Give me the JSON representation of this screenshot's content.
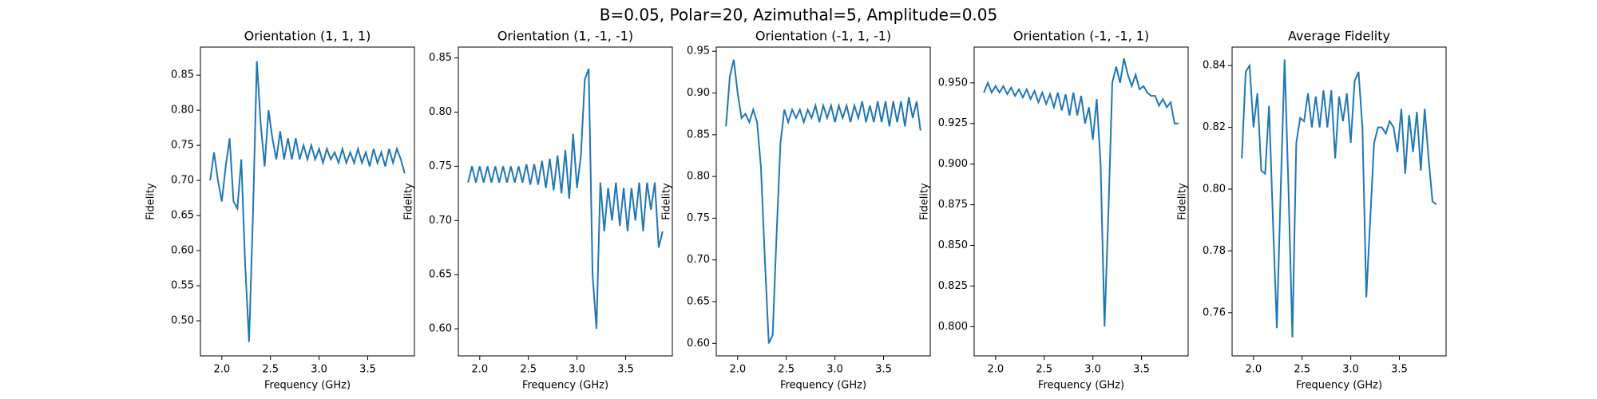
{
  "title": "B=0.05, Polar=20, Azimuthal=5, Amplitude=0.05",
  "chart_data": [
    {
      "type": "line",
      "title": "Orientation (1, 1, 1)",
      "xlabel": "Frequency (GHz)",
      "ylabel": "Fidelity",
      "color": "#1f77b4",
      "x": [
        1.88,
        1.92,
        1.96,
        2.0,
        2.04,
        2.08,
        2.12,
        2.16,
        2.2,
        2.24,
        2.28,
        2.32,
        2.36,
        2.4,
        2.44,
        2.48,
        2.52,
        2.56,
        2.6,
        2.64,
        2.68,
        2.72,
        2.76,
        2.8,
        2.84,
        2.88,
        2.92,
        2.96,
        3.0,
        3.04,
        3.08,
        3.12,
        3.16,
        3.2,
        3.24,
        3.28,
        3.32,
        3.36,
        3.4,
        3.44,
        3.48,
        3.52,
        3.56,
        3.6,
        3.64,
        3.68,
        3.72,
        3.76,
        3.8,
        3.84,
        3.88
      ],
      "values": [
        0.7,
        0.74,
        0.7,
        0.67,
        0.72,
        0.76,
        0.67,
        0.66,
        0.73,
        0.58,
        0.47,
        0.65,
        0.87,
        0.78,
        0.72,
        0.8,
        0.76,
        0.73,
        0.77,
        0.73,
        0.76,
        0.73,
        0.76,
        0.73,
        0.75,
        0.73,
        0.75,
        0.73,
        0.745,
        0.725,
        0.745,
        0.73,
        0.74,
        0.725,
        0.745,
        0.725,
        0.74,
        0.725,
        0.745,
        0.725,
        0.74,
        0.72,
        0.745,
        0.725,
        0.74,
        0.72,
        0.745,
        0.725,
        0.745,
        0.73,
        0.71
      ],
      "xlim": [
        1.78,
        3.98
      ],
      "xticks": [
        {
          "value": 2,
          "label": "2.0"
        },
        2.5,
        {
          "value": 3,
          "label": "3.0"
        },
        3.5
      ],
      "ylim": [
        0.45,
        0.89
      ],
      "yticks": [
        {
          "value": 0.5,
          "label": "0.50"
        },
        0.55,
        {
          "value": 0.6,
          "label": "0.60"
        },
        0.65,
        {
          "value": 0.7,
          "label": "0.70"
        },
        0.75,
        {
          "value": 0.8,
          "label": "0.80"
        },
        0.85
      ]
    },
    {
      "type": "line",
      "title": "Orientation (1, -1, -1)",
      "xlabel": "Frequency (GHz)",
      "ylabel": "Fidelity",
      "color": "#1f77b4",
      "x": [
        1.88,
        1.92,
        1.96,
        2.0,
        2.04,
        2.08,
        2.12,
        2.16,
        2.2,
        2.24,
        2.28,
        2.32,
        2.36,
        2.4,
        2.44,
        2.48,
        2.52,
        2.56,
        2.6,
        2.64,
        2.68,
        2.72,
        2.76,
        2.8,
        2.84,
        2.88,
        2.92,
        2.96,
        3.0,
        3.04,
        3.08,
        3.12,
        3.16,
        3.2,
        3.24,
        3.28,
        3.32,
        3.36,
        3.4,
        3.44,
        3.48,
        3.52,
        3.56,
        3.6,
        3.64,
        3.68,
        3.72,
        3.76,
        3.8,
        3.84,
        3.88
      ],
      "values": [
        0.735,
        0.75,
        0.735,
        0.75,
        0.735,
        0.75,
        0.735,
        0.75,
        0.735,
        0.75,
        0.735,
        0.75,
        0.735,
        0.75,
        0.735,
        0.752,
        0.733,
        0.752,
        0.733,
        0.755,
        0.73,
        0.757,
        0.728,
        0.76,
        0.725,
        0.765,
        0.72,
        0.78,
        0.73,
        0.76,
        0.83,
        0.84,
        0.65,
        0.6,
        0.735,
        0.69,
        0.73,
        0.7,
        0.735,
        0.695,
        0.73,
        0.69,
        0.73,
        0.7,
        0.735,
        0.69,
        0.735,
        0.71,
        0.735,
        0.675,
        0.69
      ],
      "xlim": [
        1.78,
        3.98
      ],
      "xticks": [
        {
          "value": 2,
          "label": "2.0"
        },
        2.5,
        {
          "value": 3,
          "label": "3.0"
        },
        3.5
      ],
      "ylim": [
        0.575,
        0.86
      ],
      "yticks": [
        {
          "value": 0.6,
          "label": "0.60"
        },
        0.65,
        {
          "value": 0.7,
          "label": "0.70"
        },
        0.75,
        {
          "value": 0.8,
          "label": "0.80"
        },
        0.85
      ]
    },
    {
      "type": "line",
      "title": "Orientation (-1, 1, -1)",
      "xlabel": "Frequency (GHz)",
      "ylabel": "Fidelity",
      "color": "#1f77b4",
      "x": [
        1.88,
        1.92,
        1.96,
        2.0,
        2.04,
        2.08,
        2.12,
        2.16,
        2.2,
        2.24,
        2.28,
        2.32,
        2.36,
        2.4,
        2.44,
        2.48,
        2.52,
        2.56,
        2.6,
        2.64,
        2.68,
        2.72,
        2.76,
        2.8,
        2.84,
        2.88,
        2.92,
        2.96,
        3.0,
        3.04,
        3.08,
        3.12,
        3.16,
        3.2,
        3.24,
        3.28,
        3.32,
        3.36,
        3.4,
        3.44,
        3.48,
        3.52,
        3.56,
        3.6,
        3.64,
        3.68,
        3.72,
        3.76,
        3.8,
        3.84,
        3.88
      ],
      "values": [
        0.86,
        0.92,
        0.94,
        0.9,
        0.87,
        0.875,
        0.865,
        0.88,
        0.865,
        0.81,
        0.7,
        0.6,
        0.61,
        0.73,
        0.84,
        0.88,
        0.865,
        0.88,
        0.87,
        0.88,
        0.865,
        0.88,
        0.87,
        0.885,
        0.865,
        0.885,
        0.87,
        0.885,
        0.865,
        0.885,
        0.87,
        0.885,
        0.865,
        0.885,
        0.87,
        0.89,
        0.865,
        0.885,
        0.865,
        0.89,
        0.865,
        0.89,
        0.86,
        0.89,
        0.865,
        0.89,
        0.86,
        0.895,
        0.87,
        0.89,
        0.855
      ],
      "xlim": [
        1.78,
        3.98
      ],
      "xticks": [
        {
          "value": 2,
          "label": "2.0"
        },
        2.5,
        {
          "value": 3,
          "label": "3.0"
        },
        3.5
      ],
      "ylim": [
        0.585,
        0.955
      ],
      "yticks": [
        {
          "value": 0.6,
          "label": "0.60"
        },
        0.65,
        {
          "value": 0.7,
          "label": "0.70"
        },
        0.75,
        {
          "value": 0.8,
          "label": "0.80"
        },
        0.85,
        {
          "value": 0.9,
          "label": "0.90"
        },
        0.95
      ]
    },
    {
      "type": "line",
      "title": "Orientation (-1, -1, 1)",
      "xlabel": "Frequency (GHz)",
      "ylabel": "Fidelity",
      "color": "#1f77b4",
      "x": [
        1.88,
        1.92,
        1.96,
        2.0,
        2.04,
        2.08,
        2.12,
        2.16,
        2.2,
        2.24,
        2.28,
        2.32,
        2.36,
        2.4,
        2.44,
        2.48,
        2.52,
        2.56,
        2.6,
        2.64,
        2.68,
        2.72,
        2.76,
        2.8,
        2.84,
        2.88,
        2.92,
        2.96,
        3.0,
        3.04,
        3.08,
        3.12,
        3.16,
        3.2,
        3.24,
        3.28,
        3.32,
        3.36,
        3.4,
        3.44,
        3.48,
        3.52,
        3.56,
        3.6,
        3.64,
        3.68,
        3.72,
        3.76,
        3.8,
        3.84,
        3.88
      ],
      "values": [
        0.944,
        0.95,
        0.944,
        0.948,
        0.944,
        0.948,
        0.943,
        0.947,
        0.942,
        0.946,
        0.941,
        0.946,
        0.94,
        0.945,
        0.938,
        0.944,
        0.937,
        0.943,
        0.935,
        0.944,
        0.933,
        0.943,
        0.93,
        0.944,
        0.93,
        0.942,
        0.925,
        0.935,
        0.915,
        0.94,
        0.9,
        0.8,
        0.87,
        0.95,
        0.96,
        0.95,
        0.965,
        0.955,
        0.948,
        0.955,
        0.946,
        0.948,
        0.944,
        0.942,
        0.942,
        0.936,
        0.94,
        0.935,
        0.938,
        0.925,
        0.925
      ],
      "xlim": [
        1.78,
        3.98
      ],
      "xticks": [
        {
          "value": 2,
          "label": "2.0"
        },
        2.5,
        {
          "value": 3,
          "label": "3.0"
        },
        3.5
      ],
      "ylim": [
        0.782,
        0.972
      ],
      "yticks": [
        {
          "value": 0.8,
          "label": "0.800"
        },
        0.825,
        {
          "value": 0.85,
          "label": "0.850"
        },
        0.875,
        {
          "value": 0.9,
          "label": "0.900"
        },
        0.925,
        {
          "value": 0.95,
          "label": "0.950"
        }
      ]
    },
    {
      "type": "line",
      "title": "Average Fidelity",
      "xlabel": "Frequency (GHz)",
      "ylabel": "Fidelity",
      "color": "#1f77b4",
      "x": [
        1.88,
        1.92,
        1.96,
        2.0,
        2.04,
        2.08,
        2.12,
        2.16,
        2.2,
        2.24,
        2.28,
        2.32,
        2.36,
        2.4,
        2.44,
        2.48,
        2.52,
        2.56,
        2.6,
        2.64,
        2.68,
        2.72,
        2.76,
        2.8,
        2.84,
        2.88,
        2.92,
        2.96,
        3.0,
        3.04,
        3.08,
        3.12,
        3.16,
        3.2,
        3.24,
        3.28,
        3.32,
        3.36,
        3.4,
        3.44,
        3.48,
        3.52,
        3.56,
        3.6,
        3.64,
        3.68,
        3.72,
        3.76,
        3.8,
        3.84,
        3.88
      ],
      "values": [
        0.81,
        0.838,
        0.84,
        0.82,
        0.831,
        0.806,
        0.805,
        0.827,
        0.79,
        0.755,
        0.8,
        0.842,
        0.8,
        0.752,
        0.815,
        0.823,
        0.822,
        0.831,
        0.82,
        0.83,
        0.82,
        0.832,
        0.82,
        0.832,
        0.81,
        0.83,
        0.822,
        0.831,
        0.815,
        0.835,
        0.838,
        0.82,
        0.765,
        0.79,
        0.815,
        0.82,
        0.82,
        0.818,
        0.822,
        0.82,
        0.812,
        0.826,
        0.805,
        0.824,
        0.812,
        0.825,
        0.806,
        0.826,
        0.81,
        0.796,
        0.795
      ],
      "xlim": [
        1.78,
        3.98
      ],
      "xticks": [
        {
          "value": 2,
          "label": "2.0"
        },
        2.5,
        {
          "value": 3,
          "label": "3.0"
        },
        3.5
      ],
      "ylim": [
        0.746,
        0.846
      ],
      "yticks": [
        0.76,
        0.78,
        {
          "value": 0.8,
          "label": "0.80"
        },
        0.82,
        0.84
      ]
    }
  ]
}
